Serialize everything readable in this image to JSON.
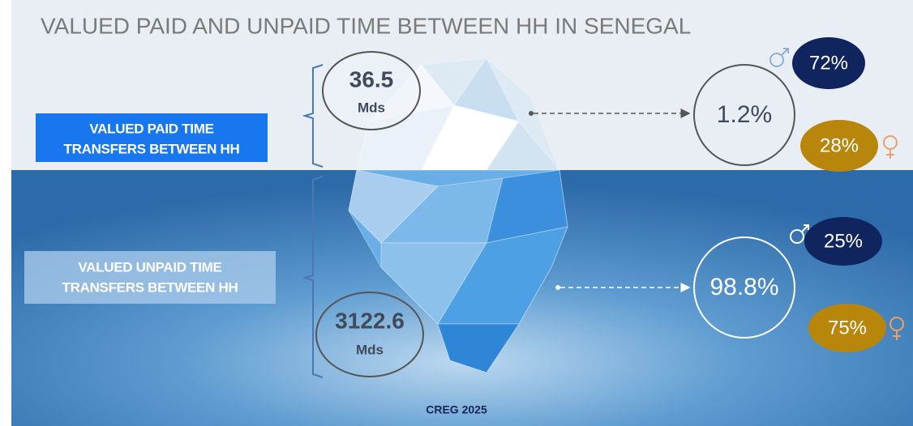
{
  "title": "VALUED PAID AND UNPAID TIME BETWEEN HH IN SENEGAL",
  "paid": {
    "label": [
      "VALUED PAID TIME",
      "TRANSFERS BETWEEN HH"
    ],
    "amount": "36.5",
    "unit": "Mds",
    "share": "1.2%",
    "male": "72%",
    "female": "28%"
  },
  "unpaid": {
    "label": [
      "VALUED UNPAID TIME",
      "TRANSFERS BETWEEN HH"
    ],
    "amount": "3122.6",
    "unit": "Mds",
    "share": "98.8%",
    "male": "25%",
    "female": "75%"
  },
  "source": "CREG 2025"
}
